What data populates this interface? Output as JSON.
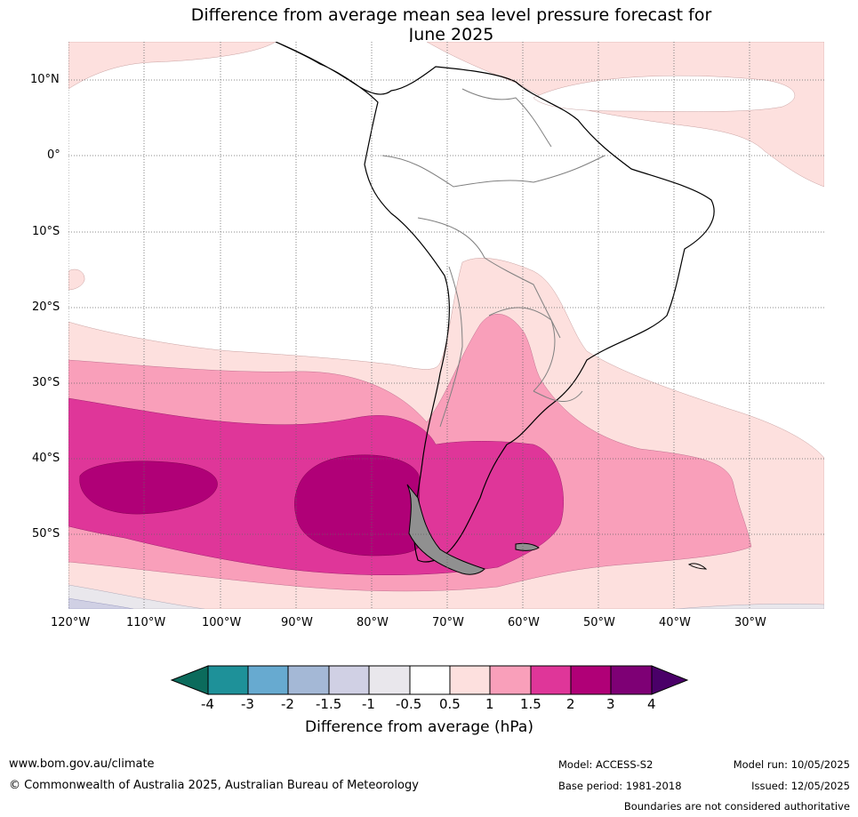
{
  "title_line1": "Difference from average mean sea level pressure forecast for",
  "title_line2": "June 2025",
  "lat_labels": [
    "10°N",
    "0°",
    "10°S",
    "20°S",
    "30°S",
    "40°S",
    "50°S"
  ],
  "lon_labels": [
    "120°W",
    "110°W",
    "100°W",
    "90°W",
    "80°W",
    "70°W",
    "60°W",
    "50°W",
    "40°W",
    "30°W"
  ],
  "colorbar": {
    "title": "Difference from average (hPa)",
    "tick_labels": [
      "-4",
      "-3",
      "-2",
      "-1.5",
      "-1",
      "-0.5",
      "0.5",
      "1",
      "1.5",
      "2",
      "3",
      "4"
    ],
    "colors": [
      "#0b6b5c",
      "#1e9199",
      "#67aad0",
      "#a4b8d6",
      "#d0d0e4",
      "#e9e7ec",
      "#ffffff",
      "#fde0de",
      "#f99fba",
      "#df3699",
      "#b00077",
      "#7e0075",
      "#4a0068"
    ]
  },
  "footer": {
    "website": "www.bom.gov.au/climate",
    "copyright": "© Commonwealth of Australia 2025, Australian Bureau of Meteorology",
    "model": "Model: ACCESS-S2",
    "base_period": "Base period: 1981-2018",
    "model_run": "Model run: 10/05/2025",
    "issued": "Issued: 12/05/2025",
    "disclaimer": "Boundaries are not considered authoritative"
  }
}
